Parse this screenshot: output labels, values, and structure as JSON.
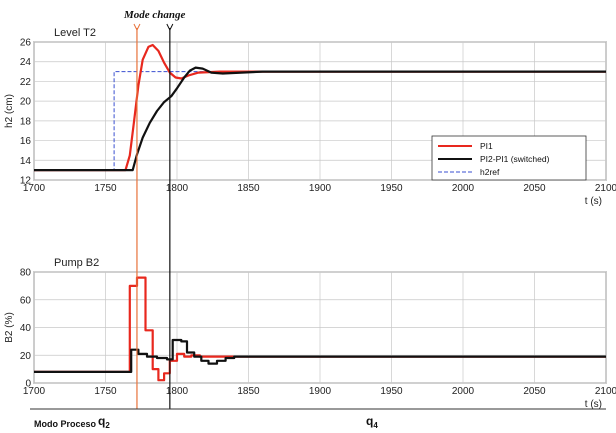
{
  "mode_change_label": "Mode change",
  "modo_label": "Modo Proceso",
  "q_left": {
    "base": "q",
    "sub": "2"
  },
  "q_right": {
    "base": "q",
    "sub": "4"
  },
  "colors": {
    "pi1": "#e8281e",
    "switched": "#111111",
    "ref": "#3a4fd0",
    "grid": "#c8c8c8"
  },
  "chart_data": [
    {
      "type": "line",
      "title": "Level T2",
      "ylabel": "h2 (cm)",
      "xlabel": "t (s)",
      "xlim": [
        1700,
        2100
      ],
      "ylim": [
        12,
        26
      ],
      "xticks": [
        1700,
        1750,
        1800,
        1850,
        1900,
        1950,
        2000,
        2050,
        2100
      ],
      "yticks": [
        12,
        14,
        16,
        18,
        20,
        22,
        24,
        26
      ],
      "grid": true,
      "legend": "center-right",
      "series": [
        {
          "name": "PI1",
          "color": "#e8281e",
          "style": "solid",
          "points": [
            [
              1700,
              13
            ],
            [
              1764,
              13
            ],
            [
              1767,
              14.5
            ],
            [
              1770,
              18
            ],
            [
              1773,
              21.6
            ],
            [
              1776,
              24.2
            ],
            [
              1780,
              25.5
            ],
            [
              1783,
              25.7
            ],
            [
              1787,
              25.1
            ],
            [
              1791,
              23.9
            ],
            [
              1795,
              22.9
            ],
            [
              1799,
              22.4
            ],
            [
              1803,
              22.3
            ],
            [
              1808,
              22.6
            ],
            [
              1815,
              22.9
            ],
            [
              1830,
              23.0
            ],
            [
              2100,
              23.0
            ]
          ]
        },
        {
          "name": "PI2-PI1 (switched)",
          "color": "#111111",
          "style": "solid",
          "points": [
            [
              1700,
              13
            ],
            [
              1769,
              13
            ],
            [
              1772,
              14.6
            ],
            [
              1776,
              16.3
            ],
            [
              1781,
              17.8
            ],
            [
              1786,
              19.0
            ],
            [
              1791,
              19.9
            ],
            [
              1796,
              20.5
            ],
            [
              1800,
              21.3
            ],
            [
              1805,
              22.4
            ],
            [
              1809,
              23.1
            ],
            [
              1813,
              23.4
            ],
            [
              1818,
              23.3
            ],
            [
              1824,
              22.9
            ],
            [
              1832,
              22.8
            ],
            [
              1845,
              22.9
            ],
            [
              1860,
              23.0
            ],
            [
              2100,
              23.0
            ]
          ]
        },
        {
          "name": "h2ref",
          "color": "#3a4fd0",
          "style": "dashed",
          "points": [
            [
              1700,
              13
            ],
            [
              1756,
              13
            ],
            [
              1756,
              23
            ],
            [
              2100,
              23
            ]
          ]
        }
      ]
    },
    {
      "type": "line",
      "title": "Pump B2",
      "ylabel": "B2 (%)",
      "xlabel": "t (s)",
      "xlim": [
        1700,
        2100
      ],
      "ylim": [
        0,
        80
      ],
      "xticks": [
        1700,
        1750,
        1800,
        1850,
        1900,
        1950,
        2000,
        2050,
        2100
      ],
      "yticks": [
        0,
        20,
        40,
        60,
        80
      ],
      "grid": true,
      "series": [
        {
          "name": "PI1",
          "color": "#e8281e",
          "style": "solid",
          "points": [
            [
              1700,
              8
            ],
            [
              1767,
              8
            ],
            [
              1767,
              70
            ],
            [
              1772,
              70
            ],
            [
              1772,
              76
            ],
            [
              1778,
              76
            ],
            [
              1778,
              38
            ],
            [
              1783,
              38
            ],
            [
              1783,
              10
            ],
            [
              1787,
              10
            ],
            [
              1787,
              2
            ],
            [
              1791,
              2
            ],
            [
              1791,
              7
            ],
            [
              1795,
              7
            ],
            [
              1795,
              16
            ],
            [
              1800,
              16
            ],
            [
              1800,
              21
            ],
            [
              1805,
              21
            ],
            [
              1805,
              19
            ],
            [
              1810,
              19
            ],
            [
              1810,
              20
            ],
            [
              1816,
              20
            ],
            [
              1816,
              19
            ],
            [
              2100,
              19
            ]
          ]
        },
        {
          "name": "PI2-PI1 (switched)",
          "color": "#111111",
          "style": "solid",
          "points": [
            [
              1700,
              8
            ],
            [
              1768,
              8
            ],
            [
              1768,
              24
            ],
            [
              1773,
              24
            ],
            [
              1773,
              21
            ],
            [
              1779,
              21
            ],
            [
              1779,
              19
            ],
            [
              1786,
              19
            ],
            [
              1786,
              18
            ],
            [
              1793,
              18
            ],
            [
              1793,
              17
            ],
            [
              1797,
              17
            ],
            [
              1797,
              31
            ],
            [
              1803,
              31
            ],
            [
              1803,
              30
            ],
            [
              1807,
              30
            ],
            [
              1807,
              22
            ],
            [
              1812,
              22
            ],
            [
              1812,
              19
            ],
            [
              1817,
              19
            ],
            [
              1817,
              16
            ],
            [
              1822,
              16
            ],
            [
              1822,
              14
            ],
            [
              1828,
              14
            ],
            [
              1828,
              16
            ],
            [
              1834,
              16
            ],
            [
              1834,
              18
            ],
            [
              1840,
              18
            ],
            [
              1840,
              19
            ],
            [
              2100,
              19
            ]
          ]
        }
      ]
    }
  ]
}
